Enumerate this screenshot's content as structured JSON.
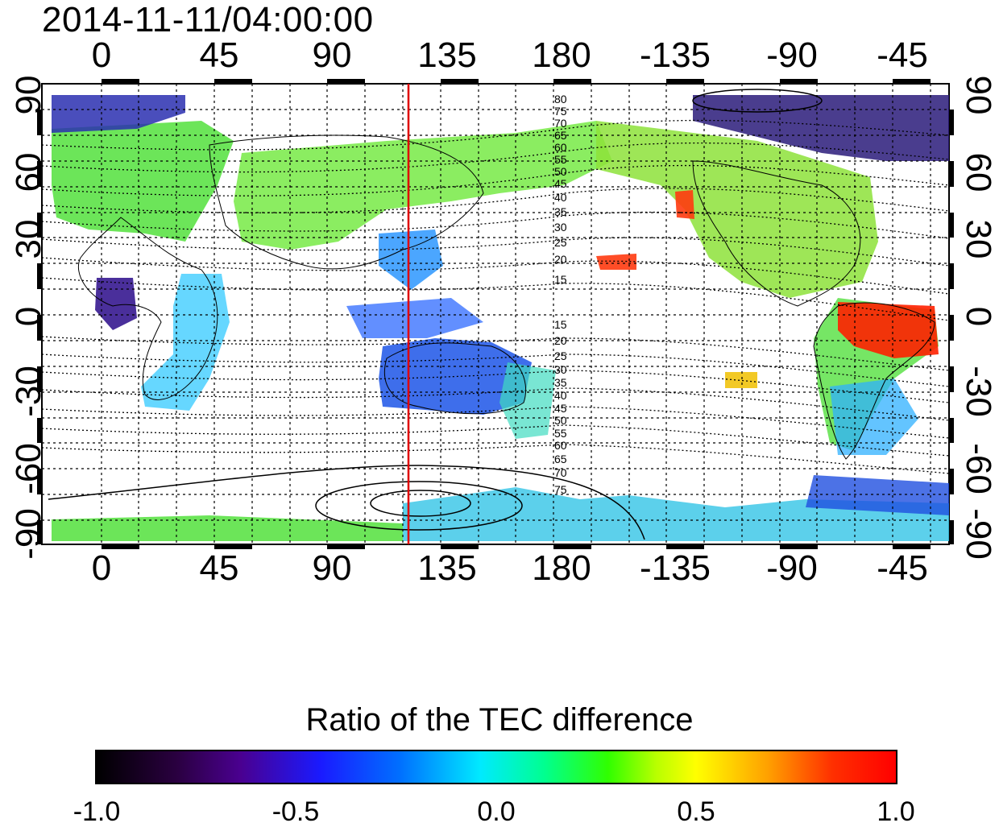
{
  "timestamp": "2014-11-11/04:00:00",
  "lon_ticks_top": [
    "0",
    "45",
    "90",
    "135",
    "180",
    "-135",
    "-90",
    "-45"
  ],
  "lon_ticks_bottom": [
    "0",
    "45",
    "90",
    "135",
    "180",
    "-135",
    "-90",
    "-45"
  ],
  "lat_ticks_left": [
    "90",
    "60",
    "30",
    "0",
    "-30",
    "-60",
    "-90"
  ],
  "lat_ticks_right": [
    "90",
    "60",
    "30",
    "0",
    "-30",
    "-60",
    "-90"
  ],
  "contour_labels_north": [
    "80",
    "75",
    "70",
    "65",
    "60",
    "55",
    "50",
    "45",
    "40",
    "35",
    "30",
    "25",
    "20",
    "15"
  ],
  "contour_labels_south": [
    "15",
    "20",
    "25",
    "30",
    "35",
    "40",
    "45",
    "50",
    "55",
    "60",
    "65",
    "70",
    "75"
  ],
  "colorbar": {
    "title": "Ratio of the TEC difference",
    "ticks": [
      "-1.0",
      "-0.5",
      "0.0",
      "0.5",
      "1.0"
    ],
    "min": -1.0,
    "max": 1.0
  },
  "colors": {
    "meridian_marker": "#e00000",
    "positive_max": "#ff0000",
    "negative_max": "#000000"
  },
  "meridian_marker_lon": 120
}
